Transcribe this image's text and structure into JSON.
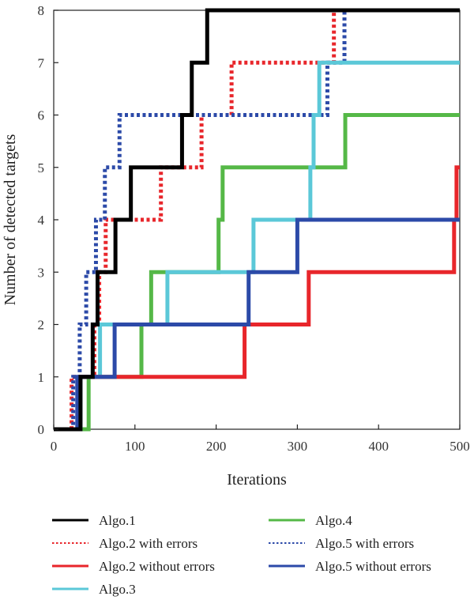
{
  "chart_data": {
    "type": "line",
    "xlabel": "Iterations",
    "ylabel": "Number of detected targets",
    "xlim": [
      0,
      500
    ],
    "ylim": [
      0,
      8
    ],
    "xticks": [
      0,
      100,
      200,
      300,
      400,
      500
    ],
    "yticks": [
      0,
      1,
      2,
      3,
      4,
      5,
      6,
      7,
      8
    ],
    "grid": false,
    "legend_position": "bottom",
    "series": [
      {
        "name": "Algo.1",
        "color": "#000000",
        "style": "solid",
        "points": [
          [
            0,
            0
          ],
          [
            33,
            0
          ],
          [
            33,
            1
          ],
          [
            48,
            1
          ],
          [
            48,
            2
          ],
          [
            54,
            2
          ],
          [
            54,
            3
          ],
          [
            76,
            3
          ],
          [
            76,
            4
          ],
          [
            95,
            4
          ],
          [
            95,
            5
          ],
          [
            158,
            5
          ],
          [
            158,
            6
          ],
          [
            170,
            6
          ],
          [
            170,
            7
          ],
          [
            189,
            7
          ],
          [
            189,
            8
          ],
          [
            500,
            8
          ]
        ]
      },
      {
        "name": "Algo.2 with errors",
        "color": "#e8262b",
        "style": "dotted",
        "points": [
          [
            0,
            0
          ],
          [
            22,
            0
          ],
          [
            22,
            1
          ],
          [
            50,
            1
          ],
          [
            50,
            2
          ],
          [
            56,
            2
          ],
          [
            56,
            3
          ],
          [
            64,
            3
          ],
          [
            64,
            4
          ],
          [
            132,
            4
          ],
          [
            132,
            5
          ],
          [
            182,
            5
          ],
          [
            182,
            6
          ],
          [
            219,
            6
          ],
          [
            219,
            7
          ],
          [
            345,
            7
          ],
          [
            345,
            8
          ],
          [
            500,
            8
          ]
        ]
      },
      {
        "name": "Algo.2 without errors",
        "color": "#e8262b",
        "style": "solid",
        "points": [
          [
            0,
            0
          ],
          [
            32,
            0
          ],
          [
            32,
            1
          ],
          [
            235,
            1
          ],
          [
            235,
            2
          ],
          [
            314,
            2
          ],
          [
            314,
            3
          ],
          [
            493,
            3
          ],
          [
            493,
            4
          ],
          [
            496,
            4
          ],
          [
            496,
            5
          ],
          [
            500,
            5
          ]
        ]
      },
      {
        "name": "Algo.3",
        "color": "#5bc8d8",
        "style": "solid",
        "points": [
          [
            0,
            0
          ],
          [
            33,
            0
          ],
          [
            33,
            1
          ],
          [
            57,
            1
          ],
          [
            57,
            2
          ],
          [
            140,
            2
          ],
          [
            140,
            3
          ],
          [
            246,
            3
          ],
          [
            246,
            4
          ],
          [
            316,
            4
          ],
          [
            316,
            5
          ],
          [
            320,
            5
          ],
          [
            320,
            6
          ],
          [
            327,
            6
          ],
          [
            327,
            7
          ],
          [
            500,
            7
          ]
        ]
      },
      {
        "name": "Algo.4",
        "color": "#55b847",
        "style": "solid",
        "points": [
          [
            0,
            0
          ],
          [
            43,
            0
          ],
          [
            43,
            1
          ],
          [
            108,
            1
          ],
          [
            108,
            2
          ],
          [
            120,
            2
          ],
          [
            120,
            3
          ],
          [
            203,
            3
          ],
          [
            203,
            4
          ],
          [
            208,
            4
          ],
          [
            208,
            5
          ],
          [
            359,
            5
          ],
          [
            359,
            6
          ],
          [
            500,
            6
          ]
        ]
      },
      {
        "name": "Algo.5 with errors",
        "color": "#2c4aa8",
        "style": "dotted",
        "points": [
          [
            0,
            0
          ],
          [
            24,
            0
          ],
          [
            24,
            1
          ],
          [
            32,
            1
          ],
          [
            32,
            2
          ],
          [
            40,
            2
          ],
          [
            40,
            3
          ],
          [
            52,
            3
          ],
          [
            52,
            4
          ],
          [
            63,
            4
          ],
          [
            63,
            5
          ],
          [
            81,
            5
          ],
          [
            81,
            6
          ],
          [
            337,
            6
          ],
          [
            337,
            7
          ],
          [
            358,
            7
          ],
          [
            358,
            8
          ],
          [
            500,
            8
          ]
        ]
      },
      {
        "name": "Algo.5 without errors",
        "color": "#2c4aa8",
        "style": "solid",
        "points": [
          [
            0,
            0
          ],
          [
            29,
            0
          ],
          [
            29,
            1
          ],
          [
            75,
            1
          ],
          [
            75,
            2
          ],
          [
            240,
            2
          ],
          [
            240,
            3
          ],
          [
            300,
            3
          ],
          [
            300,
            4
          ],
          [
            500,
            4
          ]
        ]
      }
    ],
    "legend": [
      {
        "label": "Algo.1",
        "series": 0
      },
      {
        "label": "Algo.4",
        "series": 4
      },
      {
        "label": "Algo.2 with errors",
        "series": 1
      },
      {
        "label": "Algo.5 with errors",
        "series": 5
      },
      {
        "label": "Algo.2 without errors",
        "series": 2
      },
      {
        "label": "Algo.5 without errors",
        "series": 6
      },
      {
        "label": "Algo.3",
        "series": 3
      }
    ]
  }
}
